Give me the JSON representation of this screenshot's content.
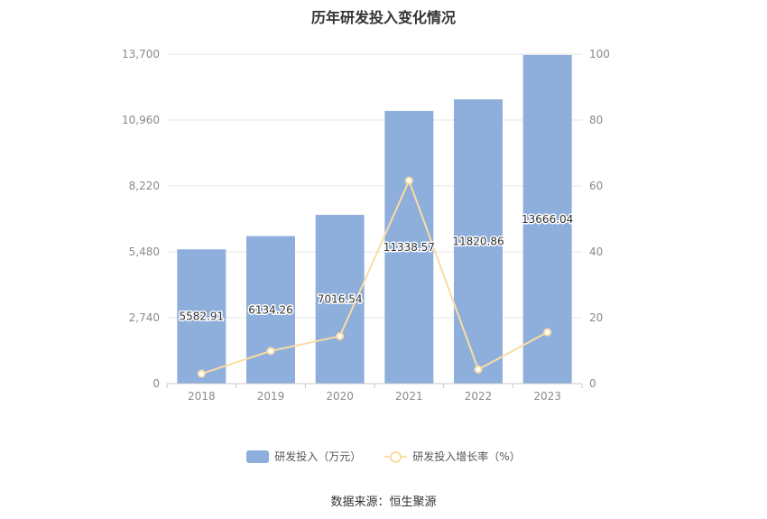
{
  "chart_data": {
    "type": "bar",
    "title": "历年研发投入变化情况",
    "categories": [
      "2018",
      "2019",
      "2020",
      "2021",
      "2022",
      "2023"
    ],
    "series": [
      {
        "name": "研发投入（万元）",
        "type": "bar",
        "axis": "left",
        "values": [
          5582.91,
          6134.26,
          7016.54,
          11338.57,
          11820.86,
          13666.04
        ],
        "labels": [
          "5582.91",
          "6134.26",
          "7016.54",
          "11338.57",
          "11820.86",
          "13666.04"
        ]
      },
      {
        "name": "研发投入增长率（%）",
        "type": "line",
        "axis": "right",
        "values": [
          3.0,
          9.9,
          14.4,
          61.6,
          4.3,
          15.6
        ]
      }
    ],
    "y_left": {
      "min": 0,
      "max": 13700,
      "ticks": [
        "0",
        "2,740",
        "5,480",
        "8,220",
        "10,960",
        "13,700"
      ]
    },
    "y_right": {
      "min": 0,
      "max": 100,
      "ticks": [
        "0",
        "20",
        "40",
        "60",
        "80",
        "100"
      ]
    },
    "grid": true,
    "legend_position": "bottom"
  },
  "colors": {
    "bar": "#8eaedb",
    "line": "#fbdca5",
    "grid": "#e6e6e6",
    "axis": "#c8c8c8"
  },
  "source_text": "数据来源：恒生聚源"
}
